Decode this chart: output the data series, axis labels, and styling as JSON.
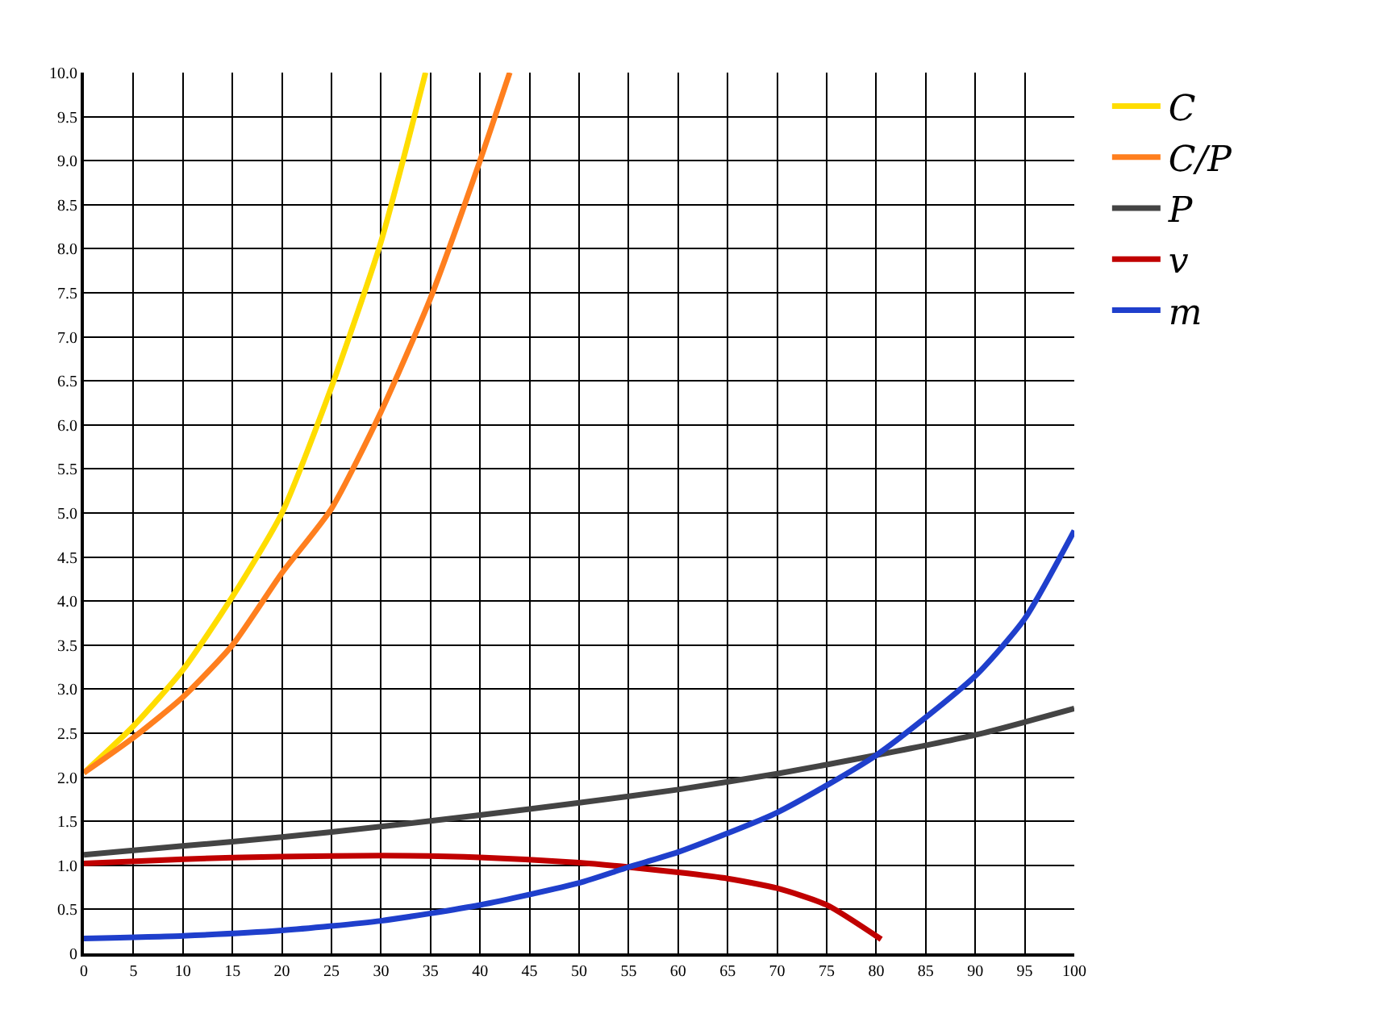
{
  "chart_data": {
    "type": "line",
    "xlim": [
      0,
      100
    ],
    "ylim": [
      0,
      10
    ],
    "xticks": [
      0,
      5,
      10,
      15,
      20,
      25,
      30,
      35,
      40,
      45,
      50,
      55,
      60,
      65,
      70,
      75,
      80,
      85,
      90,
      95,
      100
    ],
    "yticks": [
      0,
      {
        "value": 0.5,
        "label": "0.5"
      },
      {
        "value": 1,
        "label": "1.0"
      },
      {
        "value": 1.5,
        "label": "1.5"
      },
      {
        "value": 2,
        "label": "2.0"
      },
      {
        "value": 2.5,
        "label": "2.5"
      },
      {
        "value": 3,
        "label": "3.0"
      },
      {
        "value": 3.5,
        "label": "3.5"
      },
      {
        "value": 4,
        "label": "4.0"
      },
      {
        "value": 4.5,
        "label": "4.5"
      },
      {
        "value": 5,
        "label": "5.0"
      },
      {
        "value": 5.5,
        "label": "5.5"
      },
      {
        "value": 6,
        "label": "6.0"
      },
      {
        "value": 6.5,
        "label": "6.5"
      },
      {
        "value": 7,
        "label": "7.0"
      },
      {
        "value": 7.5,
        "label": "7.5"
      },
      {
        "value": 8,
        "label": "8.0"
      },
      {
        "value": 8.5,
        "label": "8.5"
      },
      {
        "value": 9,
        "label": "9.0"
      },
      {
        "value": 9.5,
        "label": "9.5"
      },
      {
        "value": 10,
        "label": "10.0"
      }
    ],
    "grid": true,
    "legend": "top right",
    "marker": "none",
    "line_style": "solid",
    "series": [
      {
        "name": "C",
        "color": "#ffdd00",
        "x": [
          0,
          5,
          10,
          15,
          20,
          25,
          30,
          34.5
        ],
        "values": [
          2.05,
          2.58,
          3.22,
          4.05,
          5.0,
          6.43,
          8.08,
          10
        ]
      },
      {
        "name": "C/P",
        "color": "#ff7f1e",
        "x": [
          0,
          5,
          10,
          15,
          20,
          25,
          30,
          35,
          40,
          43
        ],
        "values": [
          2.05,
          2.45,
          2.91,
          3.5,
          4.32,
          5.05,
          6.15,
          7.44,
          9.0,
          10
        ]
      },
      {
        "name": "P",
        "color": "#444444",
        "x": [
          0,
          10,
          20,
          30,
          40,
          50,
          60,
          70,
          80,
          90,
          100
        ],
        "values": [
          1.12,
          1.22,
          1.32,
          1.44,
          1.57,
          1.71,
          1.86,
          2.04,
          2.25,
          2.48,
          2.78
        ]
      },
      {
        "name": "v",
        "color": "#c00000",
        "x": [
          0,
          10,
          20,
          30,
          40,
          50,
          55,
          60,
          65,
          70,
          75,
          80.5
        ],
        "values": [
          1.02,
          1.07,
          1.1,
          1.11,
          1.09,
          1.03,
          0.98,
          0.92,
          0.85,
          0.74,
          0.55,
          0.16
        ]
      },
      {
        "name": "m",
        "color": "#1f3fcc",
        "x": [
          0,
          10,
          20,
          30,
          40,
          50,
          55,
          60,
          70,
          80,
          90,
          95,
          100
        ],
        "values": [
          0.17,
          0.2,
          0.26,
          0.37,
          0.55,
          0.8,
          0.98,
          1.15,
          1.6,
          2.25,
          3.15,
          3.8,
          4.8
        ]
      }
    ]
  }
}
